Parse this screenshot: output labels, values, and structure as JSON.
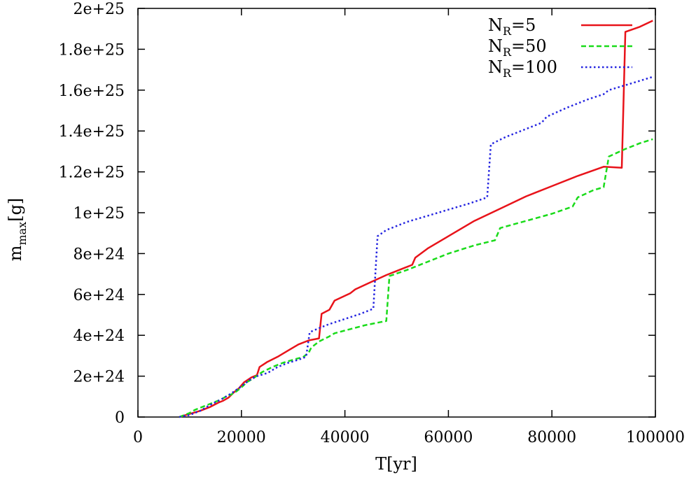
{
  "chart_data": {
    "type": "line",
    "title": "",
    "xlabel": "T[yr]",
    "ylabel": {
      "main": "m",
      "sub": "max",
      "unit": "[g]"
    },
    "xlim": [
      0,
      100000
    ],
    "ylim": [
      0,
      2e+25
    ],
    "grid": false,
    "legend_position": "top-right",
    "x_ticks": [
      {
        "value": 0,
        "label": "0"
      },
      {
        "value": 20000,
        "label": "20000"
      },
      {
        "value": 40000,
        "label": "40000"
      },
      {
        "value": 60000,
        "label": "60000"
      },
      {
        "value": 80000,
        "label": "80000"
      },
      {
        "value": 100000,
        "label": "100000"
      }
    ],
    "y_ticks": [
      {
        "value": 0,
        "label": "0"
      },
      {
        "value": 2e+24,
        "label": "2e+24"
      },
      {
        "value": 4e+24,
        "label": "4e+24"
      },
      {
        "value": 6e+24,
        "label": "6e+24"
      },
      {
        "value": 8e+24,
        "label": "8e+24"
      },
      {
        "value": 1e+25,
        "label": "1e+25"
      },
      {
        "value": 1.2e+25,
        "label": "1.2e+25"
      },
      {
        "value": 1.4e+25,
        "label": "1.4e+25"
      },
      {
        "value": 1.6e+25,
        "label": "1.6e+25"
      },
      {
        "value": 1.8e+25,
        "label": "1.8e+25"
      },
      {
        "value": 2e+25,
        "label": "2e+25"
      }
    ],
    "series": [
      {
        "name_main": "N",
        "name_sub": "R",
        "name_suffix": "=5",
        "color": "#e8131a",
        "dash": "solid",
        "x": [
          8000,
          9000,
          10000,
          12000,
          14000,
          15500,
          16500,
          17500,
          18500,
          19500,
          20500,
          22000,
          23000,
          23500,
          25000,
          27000,
          29000,
          31000,
          33000,
          35000,
          35500,
          37000,
          38000,
          41000,
          42000,
          45000,
          48000,
          51000,
          53000,
          53600,
          56000,
          60000,
          65000,
          70000,
          75000,
          80000,
          85000,
          90000,
          93500,
          94200,
          97000,
          99500
        ],
        "y": [
          0,
          8e+22,
          1.5e+23,
          3e+23,
          5e+23,
          7e+23,
          8e+23,
          9.5e+23,
          1.2e+24,
          1.4e+24,
          1.7e+24,
          1.95e+24,
          2.05e+24,
          2.45e+24,
          2.7e+24,
          2.95e+24,
          3.25e+24,
          3.55e+24,
          3.75e+24,
          3.85e+24,
          5.05e+24,
          5.25e+24,
          5.7e+24,
          6.05e+24,
          6.25e+24,
          6.6e+24,
          6.95e+24,
          7.25e+24,
          7.45e+24,
          7.8e+24,
          8.25e+24,
          8.85e+24,
          9.6e+24,
          1.02e+25,
          1.08e+25,
          1.13e+25,
          1.18e+25,
          1.225e+25,
          1.22e+25,
          1.885e+25,
          1.91e+25,
          1.94e+25
        ]
      },
      {
        "name_main": "N",
        "name_sub": "R",
        "name_suffix": "=50",
        "color": "#1adb1a",
        "dash": "dashed",
        "x": [
          8000,
          9000,
          10000,
          11000,
          12500,
          14000,
          15000,
          16000,
          17000,
          18000,
          19000,
          20000,
          21000,
          22000,
          24000,
          26000,
          28000,
          30000,
          32000,
          33000,
          33500,
          35000,
          37000,
          38000,
          41000,
          44000,
          47000,
          48000,
          48600,
          52000,
          56000,
          60000,
          65000,
          69000,
          70000,
          75000,
          80000,
          84000,
          85000,
          88000,
          90000,
          91000,
          94000,
          97000,
          99500
        ],
        "y": [
          0,
          1e+23,
          2e+23,
          3.5e+23,
          5e+23,
          6.5e+23,
          7.5e+23,
          8.5e+23,
          1e+24,
          1.1e+24,
          1.25e+24,
          1.45e+24,
          1.7e+24,
          1.85e+24,
          2.2e+24,
          2.45e+24,
          2.65e+24,
          2.8e+24,
          2.95e+24,
          3.15e+24,
          3.4e+24,
          3.7e+24,
          3.95e+24,
          4.1e+24,
          4.3e+24,
          4.5e+24,
          4.65e+24,
          4.7e+24,
          6.9e+24,
          7.2e+24,
          7.6e+24,
          8e+24,
          8.4e+24,
          8.65e+24,
          9.25e+24,
          9.6e+24,
          9.95e+24,
          1.03e+25,
          1.075e+25,
          1.11e+25,
          1.125e+25,
          1.275e+25,
          1.31e+25,
          1.34e+25,
          1.36e+25
        ]
      },
      {
        "name_main": "N",
        "name_sub": "R",
        "name_suffix": "=100",
        "color": "#2424e0",
        "dash": "dotted",
        "x": [
          8000,
          10000,
          12000,
          14000,
          16000,
          18000,
          20000,
          21500,
          23000,
          25000,
          27000,
          29000,
          31000,
          32500,
          33200,
          35000,
          37000,
          40000,
          43000,
          45500,
          46300,
          48000,
          52000,
          56000,
          60000,
          64000,
          67500,
          68200,
          71000,
          75000,
          78000,
          79000,
          83000,
          87000,
          90000,
          91000,
          95000,
          99500
        ],
        "y": [
          0,
          1e+23,
          3e+23,
          6e+23,
          8.5e+23,
          1.15e+24,
          1.5e+24,
          1.8e+24,
          2e+24,
          2.15e+24,
          2.45e+24,
          2.65e+24,
          2.8e+24,
          2.95e+24,
          4.15e+24,
          4.35e+24,
          4.55e+24,
          4.8e+24,
          5.05e+24,
          5.3e+24,
          8.85e+24,
          9.15e+24,
          9.55e+24,
          9.85e+24,
          1.015e+25,
          1.045e+25,
          1.075e+25,
          1.335e+25,
          1.37e+25,
          1.41e+25,
          1.44e+25,
          1.47e+25,
          1.515e+25,
          1.555e+25,
          1.58e+25,
          1.6e+25,
          1.63e+25,
          1.665e+25
        ]
      }
    ]
  }
}
